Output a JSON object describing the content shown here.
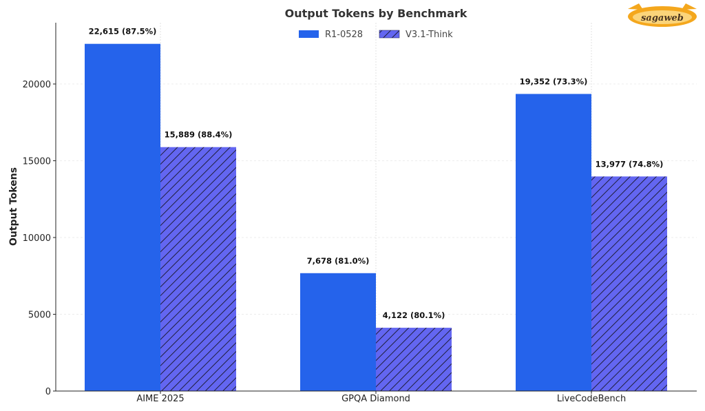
{
  "chart_data": {
    "type": "bar",
    "title": "Output Tokens by Benchmark",
    "xlabel": "",
    "ylabel": "Output Tokens",
    "categories": [
      "AIME 2025",
      "GPQA Diamond",
      "LiveCodeBench"
    ],
    "series": [
      {
        "name": "R1-0528",
        "values": [
          22615,
          7678,
          19352
        ],
        "labels": [
          "22,615 (87.5%)",
          "7,678 (81.0%)",
          "19,352 (73.3%)"
        ],
        "color": "#2563eb",
        "pattern": "solid"
      },
      {
        "name": "V3.1-Think",
        "values": [
          15889,
          4122,
          13977
        ],
        "labels": [
          "15,889 (88.4%)",
          "4,122 (80.1%)",
          "13,977 (74.8%)"
        ],
        "color": "#6366f1",
        "pattern": "hatched"
      }
    ],
    "ylim": [
      0,
      24000
    ],
    "yticks": [
      0,
      5000,
      10000,
      15000,
      20000
    ],
    "grid": true,
    "legend_position": "top-center"
  },
  "watermark": {
    "text": "sagaweb",
    "colors": {
      "orange": "#f4a71d",
      "dark": "#4a3520"
    }
  }
}
